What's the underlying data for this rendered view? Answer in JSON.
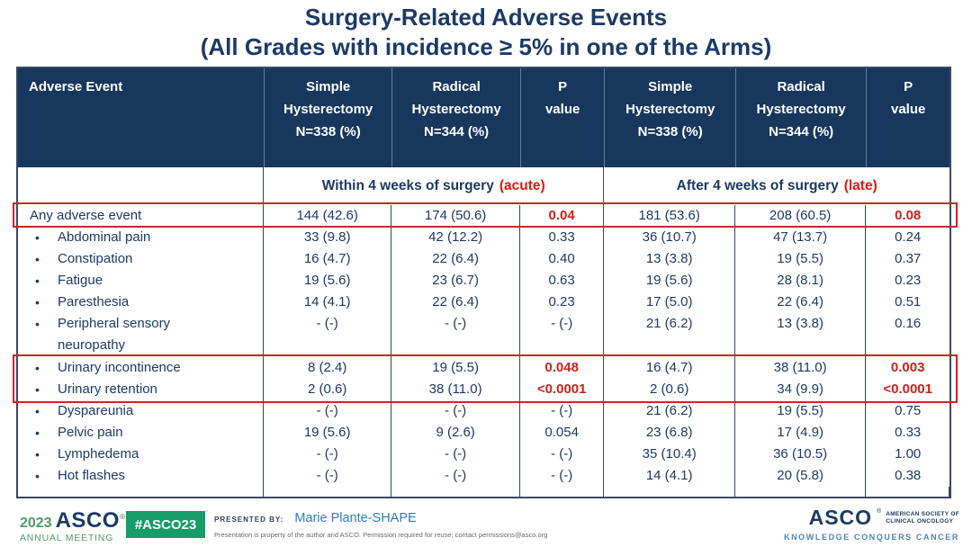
{
  "title": {
    "line1": "Surgery-Related Adverse Events",
    "line2": "(All Grades with incidence ≥ 5% in one of the Arms)"
  },
  "table": {
    "header": [
      "Adverse Event",
      "Simple\nHysterectomy\nN=338 (%)",
      "Radical\nHysterectomy\nN=344 (%)",
      "P\nvalue",
      "Simple\nHysterectomy\nN=338 (%)",
      "Radical\nHysterectomy\nN=344 (%)",
      "P\nvalue"
    ],
    "subheader": {
      "acute": {
        "text": "Within 4 weeks of surgery",
        "accent": "(acute)"
      },
      "late": {
        "text": "After 4 weeks of surgery",
        "accent": "(late)"
      }
    },
    "rows": [
      {
        "label": "Any adverse event",
        "bullet": false,
        "highlight": true,
        "cells": [
          "144 (42.6)",
          "174 (50.6)",
          "0.04",
          "181 (53.6)",
          "208 (60.5)",
          "0.08"
        ],
        "red": [
          2,
          5
        ]
      },
      {
        "label": "Abdominal pain",
        "bullet": true,
        "cells": [
          "33 (9.8)",
          "42 (12.2)",
          "0.33",
          "36 (10.7)",
          "47 (13.7)",
          "0.24"
        ]
      },
      {
        "label": "Constipation",
        "bullet": true,
        "cells": [
          "16 (4.7)",
          "22 (6.4)",
          "0.40",
          "13 (3.8)",
          "19 (5.5)",
          "0.37"
        ]
      },
      {
        "label": "Fatigue",
        "bullet": true,
        "cells": [
          "19 (5.6)",
          "23 (6.7)",
          "0.63",
          "19 (5.6)",
          "28 (8.1)",
          "0.23"
        ]
      },
      {
        "label": "Paresthesia",
        "bullet": true,
        "cells": [
          "14 (4.1)",
          "22 (6.4)",
          "0.23",
          "17 (5.0)",
          "22 (6.4)",
          "0.51"
        ]
      },
      {
        "label": "Peripheral sensory\nneuropathy",
        "bullet": true,
        "tall": true,
        "cells": [
          "- (-)",
          "- (-)",
          "- (-)",
          "21 (6.2)",
          "13 (3.8)",
          "0.16"
        ]
      },
      {
        "label": "Urinary incontinence",
        "bullet": true,
        "highlight": true,
        "cells": [
          "8 (2.4)",
          "19 (5.5)",
          "0.048",
          "16 (4.7)",
          "38 (11.0)",
          "0.003"
        ],
        "red": [
          2,
          5
        ]
      },
      {
        "label": "Urinary retention",
        "bullet": true,
        "highlight": true,
        "cells": [
          "2 (0.6)",
          "38 (11.0)",
          "<0.0001",
          "2 (0.6)",
          "34 (9.9)",
          "<0.0001"
        ],
        "red": [
          2,
          5
        ]
      },
      {
        "label": "Dyspareunia",
        "bullet": true,
        "cells": [
          "- (-)",
          "- (-)",
          "- (-)",
          "21 (6.2)",
          "19 (5.5)",
          "0.75"
        ]
      },
      {
        "label": "Pelvic pain",
        "bullet": true,
        "cells": [
          "19 (5.6)",
          "9 (2.6)",
          "0.054",
          "23 (6.8)",
          "17 (4.9)",
          "0.33"
        ]
      },
      {
        "label": "Lymphedema",
        "bullet": true,
        "cells": [
          "- (-)",
          "- (-)",
          "- (-)",
          "35 (10.4)",
          "36 (10.5)",
          "1.00"
        ]
      },
      {
        "label": "Hot flashes",
        "bullet": true,
        "cells": [
          "- (-)",
          "- (-)",
          "- (-)",
          "14 (4.1)",
          "20 (5.8)",
          "0.38"
        ]
      }
    ]
  },
  "footer": {
    "meeting_logo": {
      "year": "2023",
      "name": "ASCO",
      "reg": "®",
      "sub": "ANNUAL MEETING"
    },
    "hashtag": "#ASCO23",
    "presented_by_label": "PRESENTED BY:",
    "presenter": "Marie Plante-SHAPE",
    "disclaimer": "Presentation is property of the author and ASCO. Permission required for reuse; contact permissions@asco.org",
    "asco_logo": {
      "name": "ASCO",
      "reg": "®",
      "society": "AMERICAN SOCIETY OF\nCLINICAL ONCOLOGY",
      "tagline": "KNOWLEDGE CONQUERS CANCER"
    }
  },
  "colors": {
    "navy": "#17375e",
    "navy_text": "#1b3a66",
    "red": "#e3170f",
    "pvalue_red": "#cf211b",
    "box_red": "#cf2425",
    "line": "#364562",
    "line_dark": "#3a4a63",
    "green_logo": "#4f9b68",
    "green_badge": "#159c68",
    "teal_name": "#2a80b9",
    "tagline_blue": "#4a86b8"
  }
}
